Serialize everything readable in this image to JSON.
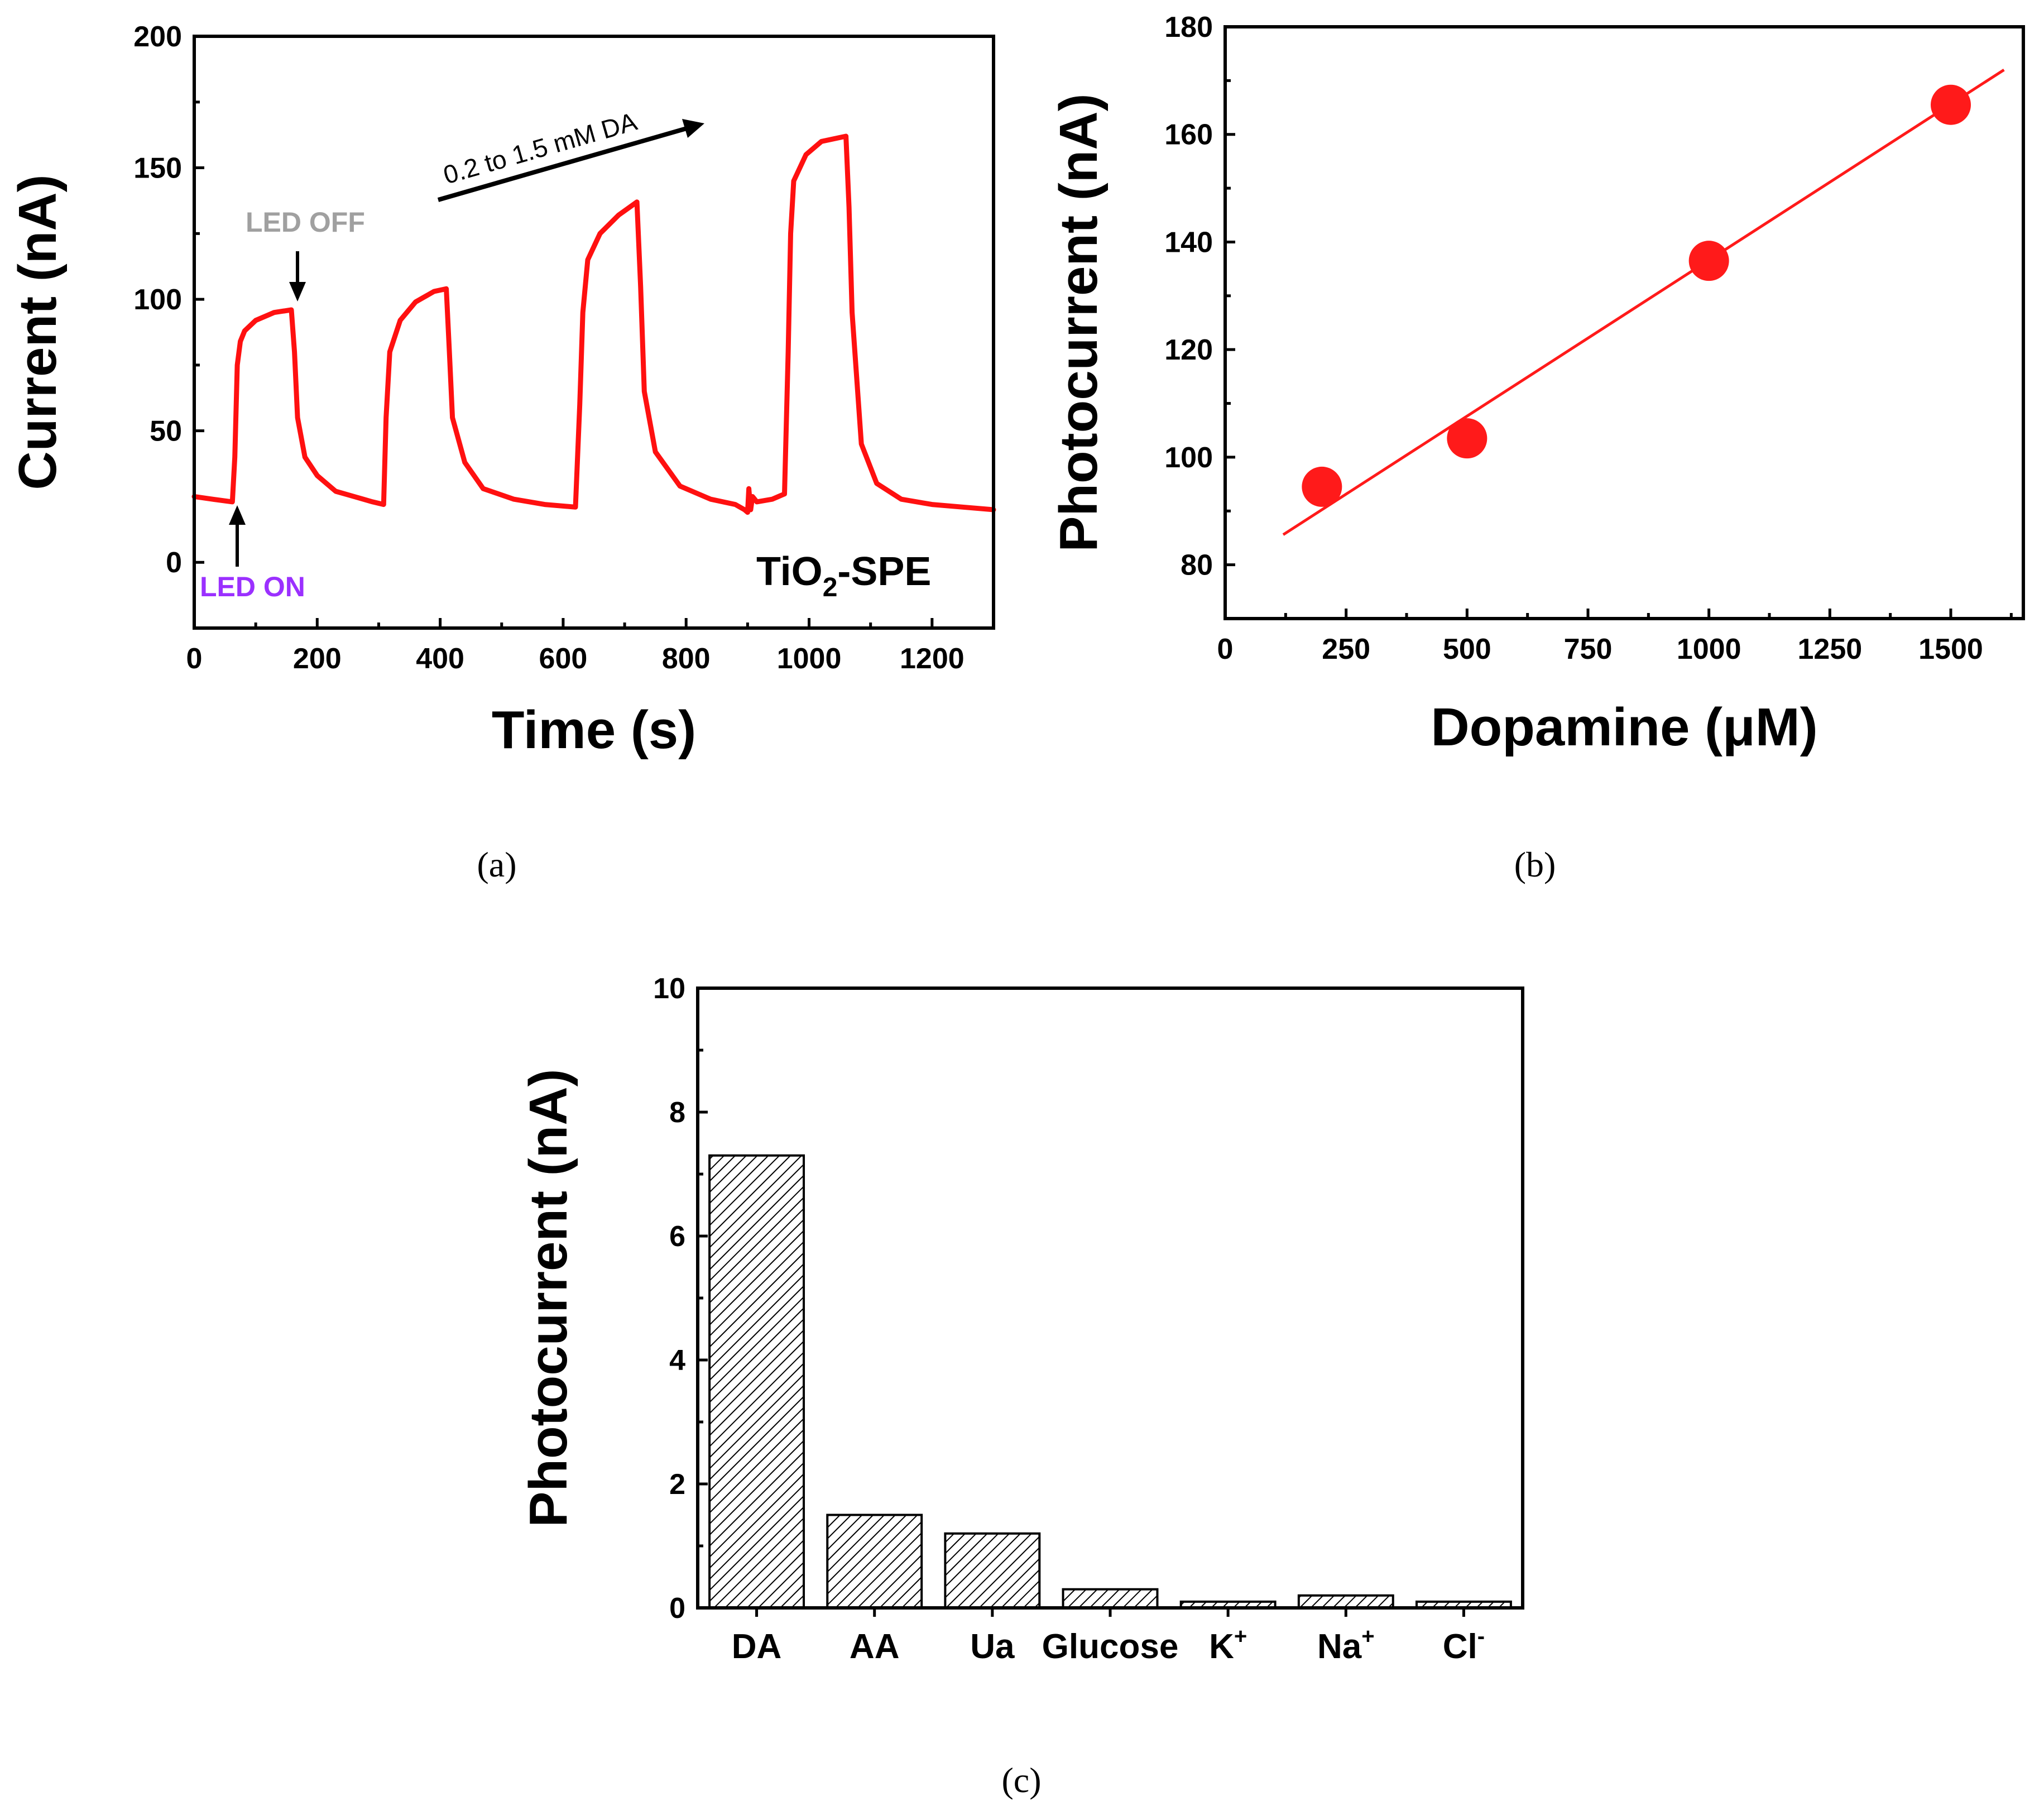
{
  "chart_data": [
    {
      "id": "a",
      "type": "line",
      "panel_label": "(a)",
      "xlabel": "Time (s)",
      "ylabel": "Current (nA)",
      "xlim": [
        0,
        1300
      ],
      "ylim": [
        -25,
        200
      ],
      "xticks": [
        0,
        200,
        400,
        600,
        800,
        1000,
        1200
      ],
      "yticks": [
        0,
        50,
        100,
        150,
        200
      ],
      "series": [
        {
          "name": "TiO2-SPE photocurrent",
          "color": "#ff1010",
          "x": [
            0,
            30,
            62,
            66,
            70,
            75,
            82,
            100,
            130,
            158,
            163,
            168,
            180,
            200,
            230,
            260,
            290,
            308,
            312,
            318,
            335,
            360,
            390,
            410,
            415,
            420,
            440,
            470,
            520,
            570,
            620,
            627,
            632,
            640,
            660,
            690,
            720,
            726,
            732,
            750,
            790,
            840,
            880,
            895,
            900,
            902,
            905,
            908,
            915,
            940,
            960,
            966,
            970,
            975,
            995,
            1020,
            1060,
            1065,
            1070,
            1085,
            1110,
            1150,
            1200,
            1250,
            1300
          ],
          "y": [
            25,
            24,
            23,
            40,
            75,
            84,
            88,
            92,
            95,
            96,
            80,
            55,
            40,
            33,
            27,
            25,
            23,
            22,
            55,
            80,
            92,
            99,
            103,
            104,
            80,
            55,
            38,
            28,
            24,
            22,
            21,
            60,
            95,
            115,
            125,
            132,
            137,
            105,
            65,
            42,
            29,
            24,
            22,
            20,
            19,
            28,
            20,
            25,
            23,
            24,
            26,
            80,
            125,
            145,
            155,
            160,
            162,
            135,
            95,
            45,
            30,
            24,
            22,
            21,
            20
          ]
        }
      ],
      "annotations": {
        "led_on": "LED ON",
        "led_off": "LED OFF",
        "concentration": "0.2 to 1.5 mM DA",
        "electrode_main": "TiO",
        "electrode_sub": "2",
        "electrode_tail": "-SPE"
      },
      "colors": {
        "led_on": "#9b30ff",
        "led_off": "#a0a0a0"
      }
    },
    {
      "id": "b",
      "type": "scatter",
      "panel_label": "(b)",
      "xlabel": "Dopamine (μM)",
      "ylabel": "Photocurrent (nA)",
      "xlim": [
        0,
        1650
      ],
      "ylim": [
        70,
        180
      ],
      "xticks": [
        0,
        250,
        500,
        750,
        1000,
        1250,
        1500
      ],
      "yticks": [
        80,
        100,
        120,
        140,
        160,
        180
      ],
      "points": {
        "x": [
          200,
          500,
          1000,
          1500
        ],
        "y": [
          94.5,
          103.5,
          136.5,
          165.5
        ]
      },
      "fit_line": {
        "x": [
          120,
          1610
        ],
        "y": [
          85.6,
          172
        ]
      },
      "color": "#ff1a1a"
    },
    {
      "id": "c",
      "type": "bar",
      "panel_label": "(c)",
      "xlabel": "",
      "ylabel": "Photocurrent (nA)",
      "ylim": [
        0,
        10
      ],
      "yticks": [
        0,
        2,
        4,
        6,
        8,
        10
      ],
      "categories": [
        {
          "base": "DA",
          "sup": ""
        },
        {
          "base": "AA",
          "sup": ""
        },
        {
          "base": "Ua",
          "sup": ""
        },
        {
          "base": "Glucose",
          "sup": ""
        },
        {
          "base": "K",
          "sup": "+"
        },
        {
          "base": "Na",
          "sup": "+"
        },
        {
          "base": "Cl",
          "sup": "-"
        }
      ],
      "values": [
        7.3,
        1.5,
        1.2,
        0.3,
        0.1,
        0.2,
        0.1
      ]
    }
  ]
}
